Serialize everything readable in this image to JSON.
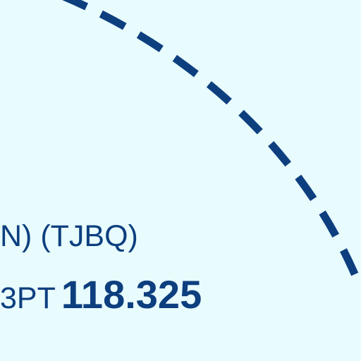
{
  "map": {
    "background_color": "#e8fbfd",
    "boundary_color": "#0d3f7f",
    "boundary_style": "dashed-circle",
    "airport_label": "N) (TJBQ)",
    "frequency_unit_partial": "3PT",
    "frequency_value": "118.325"
  }
}
